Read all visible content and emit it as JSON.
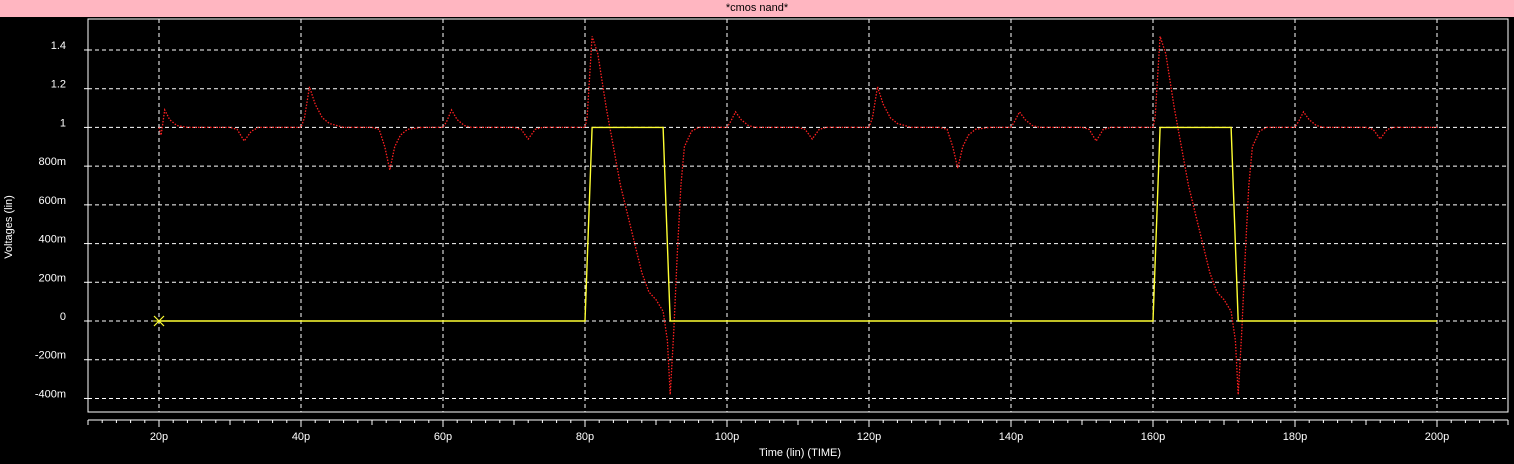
{
  "window": {
    "title": "*cmos nand*"
  },
  "colors": {
    "background": "#000000",
    "title_bar": "#ffb6c1",
    "grid": "#ffffff",
    "series_output": "#ff2020",
    "series_input": "#ffff33",
    "cursor": "#ffff33"
  },
  "chart_data": {
    "type": "line",
    "title": "*cmos nand*",
    "xlabel": "Time (lin) (TIME)",
    "ylabel": "Voltages (lin)",
    "xlim": [
      10,
      210
    ],
    "ylim": [
      -0.47,
      1.56
    ],
    "grid": true,
    "x_unit": "ps",
    "x_ticks": [
      20,
      40,
      60,
      80,
      100,
      120,
      140,
      160,
      180,
      200
    ],
    "x_tick_labels": [
      "20p",
      "40p",
      "60p",
      "80p",
      "100p",
      "120p",
      "140p",
      "160p",
      "180p",
      "200p"
    ],
    "y_ticks": [
      -0.4,
      -0.2,
      0,
      0.2,
      0.4,
      0.6,
      0.8,
      1.0,
      1.2,
      1.4
    ],
    "y_tick_labels": [
      "-400m",
      "-200m",
      "0",
      "200m",
      "400m",
      "600m",
      "800m",
      "1",
      "1.2",
      "1.4"
    ],
    "cursor_marker": {
      "x": 20,
      "y": 0
    },
    "series": [
      {
        "style": "dotted",
        "color": "#ff2020",
        "x": [
          20,
          20.3,
          20.8,
          21.5,
          22.5,
          24,
          26,
          28,
          30,
          31,
          32,
          33,
          34,
          35,
          36,
          38,
          40,
          40.5,
          41.2,
          42,
          43,
          44,
          46,
          48,
          50,
          51,
          51.8,
          52.5,
          53.2,
          54,
          55,
          57,
          60,
          60.5,
          61.2,
          62,
          63,
          64,
          66,
          68,
          70,
          71,
          72,
          73,
          74,
          76,
          80,
          80.3,
          81,
          81.8,
          83,
          85,
          87,
          88,
          89,
          90,
          91,
          91.6,
          92,
          92.5,
          93,
          93.5,
          94,
          95,
          96,
          98,
          100,
          100.5,
          101.2,
          102,
          103,
          104,
          106,
          108,
          110,
          111,
          112,
          113,
          114,
          116,
          120,
          120.5,
          121.2,
          122,
          123,
          124,
          126,
          128,
          130,
          131,
          131.8,
          132.5,
          133.2,
          134,
          135,
          137,
          140,
          140.5,
          141.2,
          142,
          143,
          144,
          146,
          148,
          150,
          151,
          152,
          153,
          154,
          156,
          160,
          160.3,
          161,
          161.8,
          163,
          165,
          167,
          168,
          169,
          170,
          171,
          171.6,
          172,
          172.5,
          173,
          173.5,
          174,
          175,
          176,
          178,
          180,
          180.5,
          181.2,
          182,
          183,
          184,
          186,
          188,
          190,
          191,
          192,
          193,
          194,
          196,
          200
        ],
        "y": [
          1.0,
          0.96,
          1.09,
          1.04,
          1.01,
          1.0,
          1.0,
          1.0,
          1.0,
          0.99,
          0.93,
          0.98,
          1.0,
          1.0,
          1.0,
          1.0,
          1.0,
          1.05,
          1.21,
          1.12,
          1.05,
          1.02,
          1.0,
          1.0,
          1.0,
          0.99,
          0.9,
          0.78,
          0.9,
          0.96,
          0.99,
          1.0,
          1.0,
          1.03,
          1.09,
          1.04,
          1.01,
          1.0,
          1.0,
          1.0,
          1.0,
          0.99,
          0.94,
          0.99,
          1.0,
          1.0,
          1.0,
          1.05,
          1.47,
          1.38,
          1.1,
          0.7,
          0.4,
          0.25,
          0.15,
          0.11,
          0.05,
          -0.1,
          -0.38,
          -0.05,
          0.35,
          0.7,
          0.9,
          0.98,
          1.0,
          1.0,
          1.0,
          1.03,
          1.08,
          1.04,
          1.01,
          1.0,
          1.0,
          1.0,
          1.0,
          0.99,
          0.94,
          0.99,
          1.0,
          1.0,
          1.0,
          1.05,
          1.21,
          1.12,
          1.05,
          1.02,
          1.0,
          1.0,
          1.0,
          0.99,
          0.9,
          0.79,
          0.9,
          0.96,
          0.99,
          1.0,
          1.0,
          1.03,
          1.08,
          1.04,
          1.01,
          1.0,
          1.0,
          1.0,
          1.0,
          0.99,
          0.93,
          0.99,
          1.0,
          1.0,
          1.0,
          1.05,
          1.47,
          1.38,
          1.1,
          0.7,
          0.4,
          0.25,
          0.15,
          0.11,
          0.05,
          -0.1,
          -0.38,
          -0.05,
          0.35,
          0.7,
          0.9,
          0.98,
          1.0,
          1.0,
          1.0,
          1.03,
          1.08,
          1.04,
          1.01,
          1.0,
          1.0,
          1.0,
          1.0,
          0.99,
          0.94,
          0.99,
          1.0,
          1.0,
          1.0
        ]
      },
      {
        "style": "solid",
        "color": "#ffff33",
        "x": [
          20,
          80,
          81,
          91,
          92,
          160,
          161,
          171,
          172,
          200
        ],
        "y": [
          0,
          0,
          1.0,
          1.0,
          0,
          0,
          1.0,
          1.0,
          0,
          0
        ]
      }
    ]
  }
}
